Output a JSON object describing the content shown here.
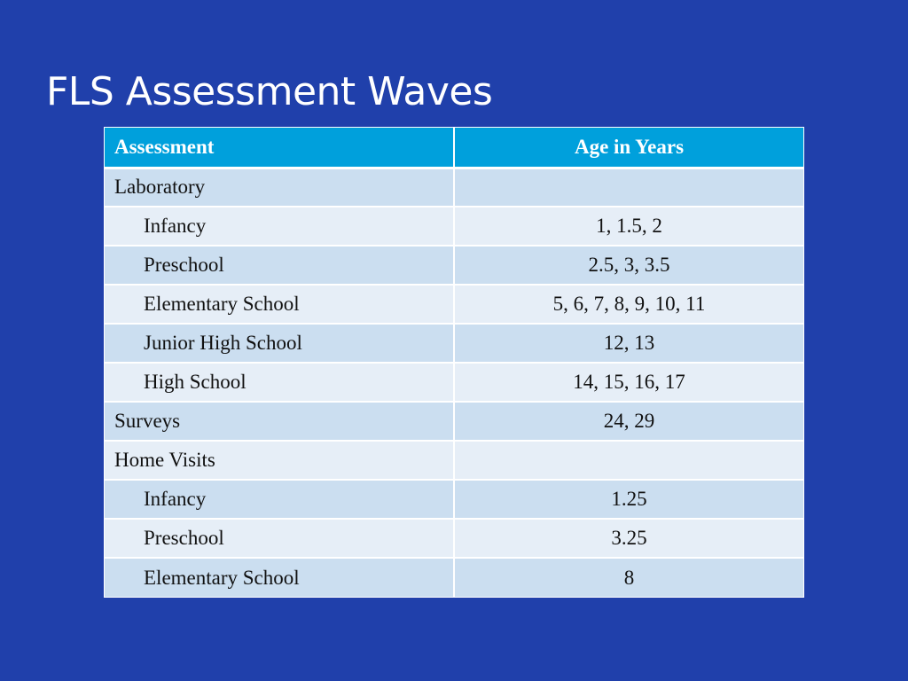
{
  "slide": {
    "title": "FLS Assessment Waves"
  },
  "table": {
    "headers": [
      "Assessment",
      "Age in Years"
    ],
    "rows": [
      {
        "assessment": "Laboratory",
        "ages": "",
        "indent": false
      },
      {
        "assessment": "Infancy",
        "ages": "1, 1.5, 2",
        "indent": true
      },
      {
        "assessment": "Preschool",
        "ages": "2.5, 3, 3.5",
        "indent": true
      },
      {
        "assessment": "Elementary School",
        "ages": "5, 6, 7, 8, 9, 10, 11",
        "indent": true
      },
      {
        "assessment": "Junior High School",
        "ages": "12, 13",
        "indent": true
      },
      {
        "assessment": "High School",
        "ages": "14, 15, 16, 17",
        "indent": true
      },
      {
        "assessment": "Surveys",
        "ages": "24, 29",
        "indent": false
      },
      {
        "assessment": "Home Visits",
        "ages": "",
        "indent": false
      },
      {
        "assessment": "Infancy",
        "ages": "1.25",
        "indent": true
      },
      {
        "assessment": "Preschool",
        "ages": "3.25",
        "indent": true
      },
      {
        "assessment": "Elementary School",
        "ages": "8",
        "indent": true
      }
    ]
  },
  "colors": {
    "background": "#2040ab",
    "header": "#00a0dc",
    "row_odd": "#cbdef0",
    "row_even": "#e6eef7"
  }
}
